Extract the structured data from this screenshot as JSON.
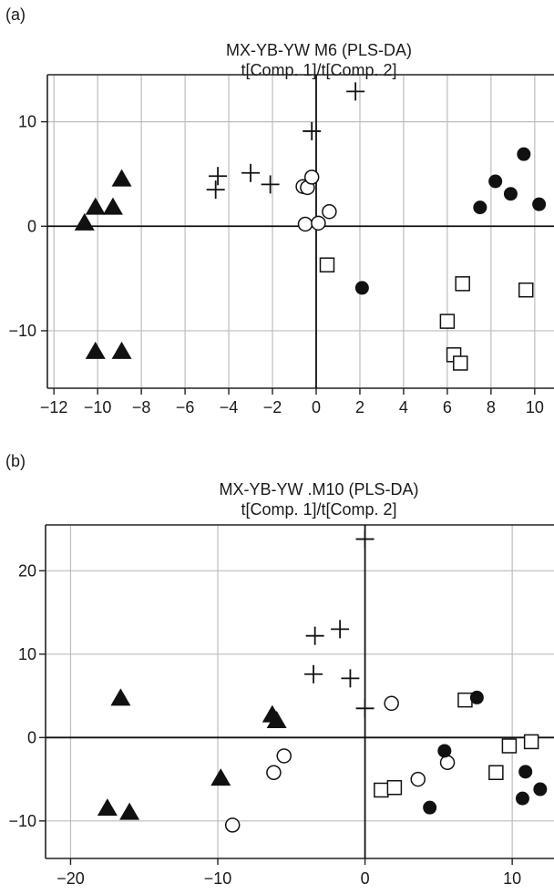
{
  "chart_data": [
    {
      "panel_label": "(a)",
      "type": "scatter",
      "title": "MX-YB-YW M6 (PLS-DA)",
      "subtitle": "t[Comp. 1]/t[Comp. 2]",
      "xlabel": "",
      "ylabel": "",
      "xlim": [
        -12.3,
        11.8
      ],
      "ylim": [
        -15.5,
        14.5
      ],
      "x_ticks": [
        -12,
        -10,
        -8,
        -6,
        -4,
        -2,
        0,
        2,
        4,
        6,
        8,
        10
      ],
      "x_tick_labels": [
        "−12",
        "−10",
        "−8",
        "−6",
        "−4",
        "−2",
        "0",
        "2",
        "4",
        "6",
        "8",
        "10"
      ],
      "y_ticks": [
        10,
        0,
        -10
      ],
      "y_tick_labels": [
        "10",
        "0",
        "−10"
      ],
      "grid": true,
      "series": [
        {
          "marker": "triangle-filled",
          "points": [
            [
              -10.6,
              0.3
            ],
            [
              -10.1,
              1.8
            ],
            [
              -9.3,
              1.8
            ],
            [
              -8.9,
              4.5
            ],
            [
              -10.1,
              -12.0
            ],
            [
              -8.9,
              -12.0
            ]
          ]
        },
        {
          "marker": "plus",
          "points": [
            [
              -4.6,
              3.5
            ],
            [
              -4.5,
              4.8
            ],
            [
              -3.0,
              5.1
            ],
            [
              -2.1,
              4.0
            ],
            [
              -0.2,
              9.1
            ],
            [
              1.8,
              12.9
            ]
          ]
        },
        {
          "marker": "circle-open",
          "points": [
            [
              -0.6,
              3.8
            ],
            [
              -0.4,
              3.7
            ],
            [
              -0.2,
              4.7
            ],
            [
              -0.5,
              0.2
            ],
            [
              0.1,
              0.3
            ],
            [
              0.6,
              1.4
            ]
          ]
        },
        {
          "marker": "square-open",
          "points": [
            [
              0.5,
              -3.7
            ],
            [
              6.7,
              -5.5
            ],
            [
              6.0,
              -9.1
            ],
            [
              6.3,
              -12.3
            ],
            [
              6.6,
              -13.1
            ],
            [
              9.6,
              -6.1
            ]
          ]
        },
        {
          "marker": "circle-filled",
          "points": [
            [
              2.1,
              -5.9
            ],
            [
              7.5,
              1.8
            ],
            [
              8.2,
              4.3
            ],
            [
              8.9,
              3.1
            ],
            [
              9.5,
              6.9
            ],
            [
              10.2,
              2.1
            ]
          ]
        }
      ]
    },
    {
      "panel_label": "(b)",
      "type": "scatter",
      "title": "MX-YB-YW .M10 (PLS-DA)",
      "subtitle": "t[Comp. 1]/t[Comp. 2]",
      "xlabel": "",
      "ylabel": "",
      "xlim": [
        -21.7,
        14.2
      ],
      "ylim": [
        -14.5,
        25.5
      ],
      "x_ticks": [
        -20,
        -10,
        0,
        10
      ],
      "x_tick_labels": [
        "−20",
        "−10",
        "0",
        "10"
      ],
      "y_ticks": [
        20,
        10,
        0,
        -10
      ],
      "y_tick_labels": [
        "20",
        "10",
        "0",
        "−10"
      ],
      "grid": true,
      "series": [
        {
          "marker": "triangle-filled",
          "points": [
            [
              -16.6,
              4.7
            ],
            [
              -17.5,
              -8.5
            ],
            [
              -16.0,
              -9.0
            ],
            [
              -9.8,
              -4.9
            ],
            [
              -6.3,
              2.7
            ],
            [
              -6.0,
              2.0
            ]
          ]
        },
        {
          "marker": "plus",
          "points": [
            [
              -3.4,
              12.2
            ],
            [
              -1.7,
              13.0
            ],
            [
              -3.5,
              7.6
            ],
            [
              -1.0,
              7.1
            ],
            [
              0.0,
              3.5
            ],
            [
              0.0,
              23.8
            ]
          ]
        },
        {
          "marker": "circle-open",
          "points": [
            [
              -5.5,
              -2.2
            ],
            [
              -6.2,
              -4.2
            ],
            [
              -9.0,
              -10.5
            ],
            [
              1.8,
              4.1
            ],
            [
              3.6,
              -5.0
            ],
            [
              5.6,
              -3.0
            ]
          ]
        },
        {
          "marker": "square-open",
          "points": [
            [
              1.1,
              -6.3
            ],
            [
              2.0,
              -6.0
            ],
            [
              6.8,
              4.5
            ],
            [
              8.9,
              -4.2
            ],
            [
              9.8,
              -1.0
            ],
            [
              11.3,
              -0.5
            ]
          ]
        },
        {
          "marker": "circle-filled",
          "points": [
            [
              5.4,
              -1.6
            ],
            [
              4.4,
              -8.4
            ],
            [
              7.6,
              4.8
            ],
            [
              10.9,
              -4.1
            ],
            [
              10.7,
              -7.3
            ],
            [
              11.9,
              -6.2
            ]
          ]
        }
      ]
    }
  ]
}
